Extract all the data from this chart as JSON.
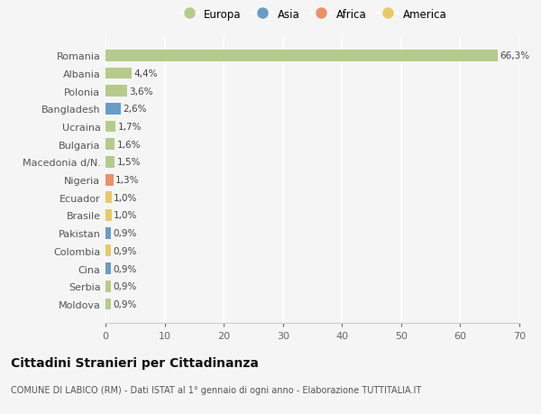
{
  "countries": [
    "Romania",
    "Albania",
    "Polonia",
    "Bangladesh",
    "Ucraina",
    "Bulgaria",
    "Macedonia d/N.",
    "Nigeria",
    "Ecuador",
    "Brasile",
    "Pakistan",
    "Colombia",
    "Cina",
    "Serbia",
    "Moldova"
  ],
  "values": [
    66.3,
    4.4,
    3.6,
    2.6,
    1.7,
    1.6,
    1.5,
    1.3,
    1.0,
    1.0,
    0.9,
    0.9,
    0.9,
    0.9,
    0.9
  ],
  "labels": [
    "66,3%",
    "4,4%",
    "3,6%",
    "2,6%",
    "1,7%",
    "1,6%",
    "1,5%",
    "1,3%",
    "1,0%",
    "1,0%",
    "0,9%",
    "0,9%",
    "0,9%",
    "0,9%",
    "0,9%"
  ],
  "continents": [
    "Europa",
    "Europa",
    "Europa",
    "Asia",
    "Europa",
    "Europa",
    "Europa",
    "Africa",
    "America",
    "America",
    "Asia",
    "America",
    "Asia",
    "Europa",
    "Europa"
  ],
  "continent_colors": {
    "Europa": "#b5cb8b",
    "Asia": "#6b9bc7",
    "Africa": "#e8926a",
    "America": "#e8c96a"
  },
  "legend_order": [
    "Europa",
    "Asia",
    "Africa",
    "America"
  ],
  "background_color": "#f5f5f5",
  "grid_color": "#ffffff",
  "title": "Cittadini Stranieri per Cittadinanza",
  "subtitle": "COMUNE DI LABICO (RM) - Dati ISTAT al 1° gennaio di ogni anno - Elaborazione TUTTITALIA.IT",
  "xlabel_ticks": [
    0,
    10,
    20,
    30,
    40,
    50,
    60,
    70
  ],
  "xlim": [
    0,
    70
  ]
}
